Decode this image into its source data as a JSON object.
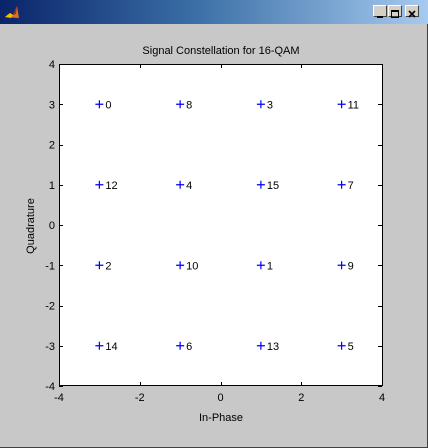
{
  "window": {
    "title": "",
    "colors": {
      "titlebar_start": "#0a246a",
      "titlebar_end": "#a6caf0",
      "figure_bg": "#c8c8c8",
      "axes_bg": "#ffffff",
      "marker": "#0000ff"
    },
    "icons": {
      "app": "matlab-logo-icon",
      "minimize": "minimize-icon",
      "maximize": "maximize-icon",
      "close": "close-icon"
    }
  },
  "chart_data": {
    "type": "scatter",
    "title": "Signal Constellation for 16-QAM",
    "xlabel": "In-Phase",
    "ylabel": "Quadrature",
    "xlim": [
      -4,
      4
    ],
    "ylim": [
      -4,
      4
    ],
    "xticks": [
      -4,
      -2,
      0,
      2,
      4
    ],
    "yticks": [
      -4,
      -3,
      -2,
      -1,
      0,
      1,
      2,
      3,
      4
    ],
    "grid": false,
    "marker": "+",
    "marker_color": "#0000ff",
    "points": [
      {
        "x": -3,
        "y": 3,
        "label": "0"
      },
      {
        "x": -1,
        "y": 3,
        "label": "8"
      },
      {
        "x": 1,
        "y": 3,
        "label": "3"
      },
      {
        "x": 3,
        "y": 3,
        "label": "11"
      },
      {
        "x": -3,
        "y": 1,
        "label": "12"
      },
      {
        "x": -1,
        "y": 1,
        "label": "4"
      },
      {
        "x": 1,
        "y": 1,
        "label": "15"
      },
      {
        "x": 3,
        "y": 1,
        "label": "7"
      },
      {
        "x": -3,
        "y": -1,
        "label": "2"
      },
      {
        "x": -1,
        "y": -1,
        "label": "10"
      },
      {
        "x": 1,
        "y": -1,
        "label": "1"
      },
      {
        "x": 3,
        "y": -1,
        "label": "9"
      },
      {
        "x": -3,
        "y": -3,
        "label": "14"
      },
      {
        "x": -1,
        "y": -3,
        "label": "6"
      },
      {
        "x": 1,
        "y": -3,
        "label": "13"
      },
      {
        "x": 3,
        "y": -3,
        "label": "5"
      }
    ]
  }
}
